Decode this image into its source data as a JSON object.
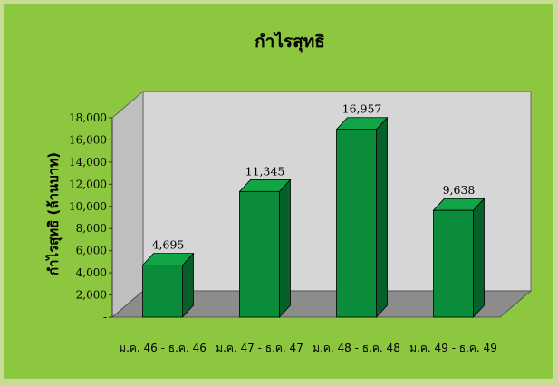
{
  "colors": {
    "page_background": "#c9dc96",
    "panel_background": "#8dc63f",
    "plot_wall": "#d6d6d6",
    "plot_floor": "#8c8c8c",
    "bar_front": "#0b8c3a",
    "bar_top": "#11a548",
    "bar_side": "#05602a"
  },
  "chart_data": {
    "type": "bar",
    "title": "กำไรสุทธิ",
    "ylabel": "กำไรสุทธิ (ล้านบาท)",
    "xlabel": "",
    "categories": [
      "ม.ค. 46 - ธ.ค. 46",
      "ม.ค. 47 - ธ.ค. 47",
      "ม.ค. 48 - ธ.ค. 48",
      "ม.ค. 49 - ธ.ค. 49"
    ],
    "values": [
      4695,
      11345,
      16957,
      9638
    ],
    "value_labels": [
      "4,695",
      "11,345",
      "16,957",
      "9,638"
    ],
    "ylim": [
      0,
      18000
    ],
    "yticks": [
      0,
      2000,
      4000,
      6000,
      8000,
      10000,
      12000,
      14000,
      16000,
      18000
    ],
    "ytick_labels": [
      "-",
      "2,000",
      "4,000",
      "6,000",
      "8,000",
      "10,000",
      "12,000",
      "14,000",
      "16,000",
      "18,000"
    ],
    "grid": false,
    "legend": "none",
    "style": "3d"
  }
}
